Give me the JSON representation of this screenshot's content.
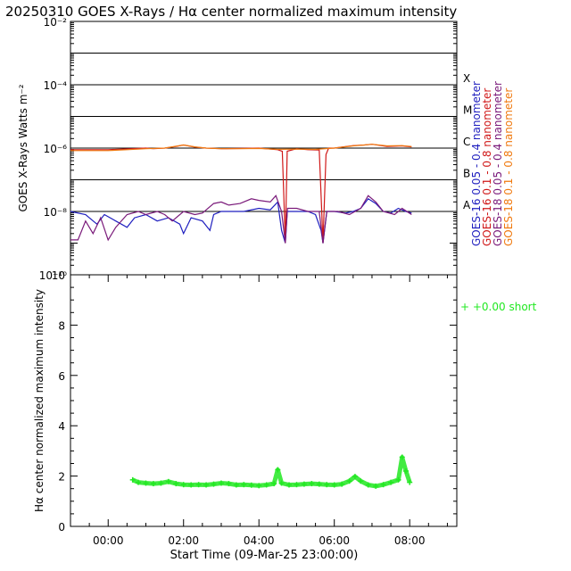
{
  "title": "20250310 GOES X-Rays / Hα center normalized maximum intensity",
  "colors": {
    "goes16_short": "#1f1fbf",
    "goes16_long": "#d01818",
    "goes18_short": "#7a1a7a",
    "goes18_long": "#f07a10",
    "halpha": "#22e822"
  },
  "chart_data": [
    {
      "type": "line",
      "ylabel": "GOES X-Rays Watts m⁻²",
      "yscale": "log",
      "ylim_exp": [
        -10,
        -2
      ],
      "ytick_labels": [
        {
          "exp": -10,
          "text": "10⁻¹⁰"
        },
        {
          "exp": -8,
          "text": "10⁻⁸"
        },
        {
          "exp": -6,
          "text": "10⁻⁶"
        },
        {
          "exp": -4,
          "text": "10⁻⁴"
        },
        {
          "exp": -2,
          "text": "10⁻²"
        }
      ],
      "flare_classes": [
        {
          "exp": -8,
          "label": "A"
        },
        {
          "exp": -7,
          "label": "B"
        },
        {
          "exp": -6,
          "label": "C"
        },
        {
          "exp": -5,
          "label": "M"
        },
        {
          "exp": -4,
          "label": "X"
        }
      ],
      "xlim_hours": [
        -1.0,
        9.25
      ],
      "series": [
        {
          "name": "GOES-16 0.05 - 0.4 nanometer",
          "color_key": "goes16_short",
          "points": [
            [
              -1.0,
              -8.0
            ],
            [
              -0.6,
              -8.1
            ],
            [
              -0.3,
              -8.4
            ],
            [
              -0.1,
              -8.1
            ],
            [
              0.2,
              -8.3
            ],
            [
              0.5,
              -8.5
            ],
            [
              0.7,
              -8.2
            ],
            [
              1.0,
              -8.1
            ],
            [
              1.3,
              -8.3
            ],
            [
              1.6,
              -8.2
            ],
            [
              1.9,
              -8.4
            ],
            [
              2.0,
              -8.7
            ],
            [
              2.2,
              -8.2
            ],
            [
              2.5,
              -8.3
            ],
            [
              2.7,
              -8.6
            ],
            [
              2.8,
              -8.1
            ],
            [
              3.0,
              -8.0
            ],
            [
              3.3,
              -8.0
            ],
            [
              3.6,
              -8.0
            ],
            [
              4.0,
              -7.9
            ],
            [
              4.3,
              -7.95
            ],
            [
              4.5,
              -7.7
            ],
            [
              4.6,
              -8.6
            ],
            [
              4.7,
              -9.0
            ],
            [
              4.75,
              -8.0
            ],
            [
              5.0,
              -8.0
            ],
            [
              5.3,
              -8.0
            ],
            [
              5.5,
              -8.1
            ],
            [
              5.65,
              -8.6
            ],
            [
              5.7,
              -9.0
            ],
            [
              5.8,
              -8.0
            ],
            [
              6.0,
              -8.0
            ],
            [
              6.3,
              -8.05
            ],
            [
              6.5,
              -8.0
            ],
            [
              6.7,
              -7.9
            ],
            [
              6.9,
              -7.6
            ],
            [
              7.1,
              -7.75
            ],
            [
              7.3,
              -8.0
            ],
            [
              7.5,
              -8.05
            ],
            [
              7.7,
              -7.9
            ],
            [
              7.9,
              -8.0
            ],
            [
              8.05,
              -8.05
            ]
          ]
        },
        {
          "name": "GOES-16 0.1 - 0.8 nanometer",
          "color_key": "goes16_long",
          "points": [
            [
              -1.0,
              -6.05
            ],
            [
              0.0,
              -6.05
            ],
            [
              0.6,
              -6.02
            ],
            [
              1.0,
              -6.0
            ],
            [
              1.2,
              -6.02
            ],
            [
              1.5,
              -6.0
            ],
            [
              1.8,
              -5.95
            ],
            [
              2.0,
              -5.9
            ],
            [
              2.3,
              -5.97
            ],
            [
              2.6,
              -6.0
            ],
            [
              3.0,
              -6.02
            ],
            [
              3.5,
              -6.01
            ],
            [
              4.0,
              -6.0
            ],
            [
              4.5,
              -6.05
            ],
            [
              4.62,
              -6.1
            ],
            [
              4.66,
              -7.5
            ],
            [
              4.7,
              -9.0
            ],
            [
              4.75,
              -6.1
            ],
            [
              5.0,
              -6.02
            ],
            [
              5.3,
              -6.05
            ],
            [
              5.6,
              -6.06
            ],
            [
              5.65,
              -7.5
            ],
            [
              5.7,
              -9.0
            ],
            [
              5.78,
              -6.2
            ],
            [
              5.85,
              -6.0
            ],
            [
              6.0,
              -6.0
            ],
            [
              6.5,
              -5.92
            ],
            [
              6.8,
              -5.9
            ],
            [
              7.0,
              -5.88
            ],
            [
              7.4,
              -5.95
            ],
            [
              7.8,
              -5.93
            ],
            [
              8.05,
              -5.96
            ]
          ]
        },
        {
          "name": "GOES-18 0.05 - 0.4 nanometer",
          "color_key": "goes18_short",
          "points": [
            [
              -1.0,
              -8.9
            ],
            [
              -0.8,
              -8.9
            ],
            [
              -0.6,
              -8.3
            ],
            [
              -0.4,
              -8.7
            ],
            [
              -0.2,
              -8.2
            ],
            [
              0.0,
              -8.9
            ],
            [
              0.2,
              -8.5
            ],
            [
              0.5,
              -8.1
            ],
            [
              0.8,
              -8.0
            ],
            [
              1.0,
              -8.1
            ],
            [
              1.3,
              -8.0
            ],
            [
              1.5,
              -8.1
            ],
            [
              1.7,
              -8.3
            ],
            [
              2.0,
              -8.0
            ],
            [
              2.3,
              -8.1
            ],
            [
              2.5,
              -8.05
            ],
            [
              2.8,
              -7.75
            ],
            [
              3.0,
              -7.7
            ],
            [
              3.2,
              -7.8
            ],
            [
              3.5,
              -7.75
            ],
            [
              3.8,
              -7.6
            ],
            [
              4.0,
              -7.65
            ],
            [
              4.3,
              -7.7
            ],
            [
              4.45,
              -7.5
            ],
            [
              4.6,
              -8.0
            ],
            [
              4.7,
              -9.0
            ],
            [
              4.76,
              -7.9
            ],
            [
              5.0,
              -7.9
            ],
            [
              5.3,
              -8.0
            ],
            [
              5.6,
              -8.0
            ],
            [
              5.7,
              -9.0
            ],
            [
              5.8,
              -8.0
            ],
            [
              6.1,
              -8.0
            ],
            [
              6.4,
              -8.1
            ],
            [
              6.7,
              -7.9
            ],
            [
              6.9,
              -7.5
            ],
            [
              7.1,
              -7.7
            ],
            [
              7.3,
              -8.0
            ],
            [
              7.6,
              -8.1
            ],
            [
              7.8,
              -7.9
            ],
            [
              8.05,
              -8.1
            ]
          ]
        },
        {
          "name": "GOES-18 0.1 - 0.8 nanometer",
          "color_key": "goes18_long",
          "points": [
            [
              -1.0,
              -6.08
            ],
            [
              0.0,
              -6.08
            ],
            [
              0.5,
              -6.05
            ],
            [
              1.0,
              -6.02
            ],
            [
              1.5,
              -6.0
            ],
            [
              1.8,
              -5.94
            ],
            [
              2.0,
              -5.9
            ],
            [
              2.3,
              -5.96
            ],
            [
              2.6,
              -6.0
            ],
            [
              3.0,
              -6.02
            ],
            [
              3.5,
              -6.02
            ],
            [
              4.0,
              -6.01
            ],
            [
              4.5,
              -6.04
            ],
            [
              5.0,
              -6.03
            ],
            [
              5.5,
              -6.04
            ],
            [
              6.0,
              -6.0
            ],
            [
              6.5,
              -5.93
            ],
            [
              6.8,
              -5.9
            ],
            [
              7.0,
              -5.88
            ],
            [
              7.4,
              -5.93
            ],
            [
              7.8,
              -5.92
            ],
            [
              8.05,
              -5.95
            ]
          ]
        }
      ]
    },
    {
      "type": "scatter",
      "ylabel": "Hα center normalized maximum intensity",
      "xlabel": "Start Time (09-Mar-25 23:00:00)",
      "ylim": [
        0,
        10
      ],
      "yticks": [
        "0",
        "2",
        "4",
        "6",
        "8",
        "10"
      ],
      "xlim_hours": [
        -1.0,
        9.25
      ],
      "xticks": [
        {
          "hour": 0,
          "label": "00:00"
        },
        {
          "hour": 2,
          "label": "02:00"
        },
        {
          "hour": 4,
          "label": "04:00"
        },
        {
          "hour": 6,
          "label": "06:00"
        },
        {
          "hour": 8,
          "label": "08:00"
        }
      ],
      "series": [
        {
          "name": "+0.00 short",
          "color_key": "halpha",
          "marker": "+",
          "points": [
            [
              0.65,
              1.85
            ],
            [
              0.8,
              1.75
            ],
            [
              1.0,
              1.72
            ],
            [
              1.2,
              1.7
            ],
            [
              1.4,
              1.72
            ],
            [
              1.6,
              1.78
            ],
            [
              1.8,
              1.7
            ],
            [
              2.0,
              1.66
            ],
            [
              2.2,
              1.65
            ],
            [
              2.4,
              1.66
            ],
            [
              2.6,
              1.65
            ],
            [
              2.8,
              1.68
            ],
            [
              3.0,
              1.72
            ],
            [
              3.2,
              1.7
            ],
            [
              3.4,
              1.65
            ],
            [
              3.6,
              1.66
            ],
            [
              3.8,
              1.64
            ],
            [
              4.0,
              1.62
            ],
            [
              4.2,
              1.65
            ],
            [
              4.4,
              1.7
            ],
            [
              4.5,
              2.25
            ],
            [
              4.6,
              1.72
            ],
            [
              4.8,
              1.65
            ],
            [
              5.0,
              1.66
            ],
            [
              5.2,
              1.68
            ],
            [
              5.4,
              1.7
            ],
            [
              5.6,
              1.68
            ],
            [
              5.8,
              1.66
            ],
            [
              6.0,
              1.65
            ],
            [
              6.2,
              1.68
            ],
            [
              6.4,
              1.8
            ],
            [
              6.55,
              1.98
            ],
            [
              6.7,
              1.8
            ],
            [
              6.9,
              1.65
            ],
            [
              7.1,
              1.6
            ],
            [
              7.3,
              1.66
            ],
            [
              7.5,
              1.75
            ],
            [
              7.7,
              1.85
            ],
            [
              7.8,
              2.75
            ],
            [
              7.9,
              2.2
            ],
            [
              8.0,
              1.75
            ]
          ]
        }
      ]
    }
  ]
}
